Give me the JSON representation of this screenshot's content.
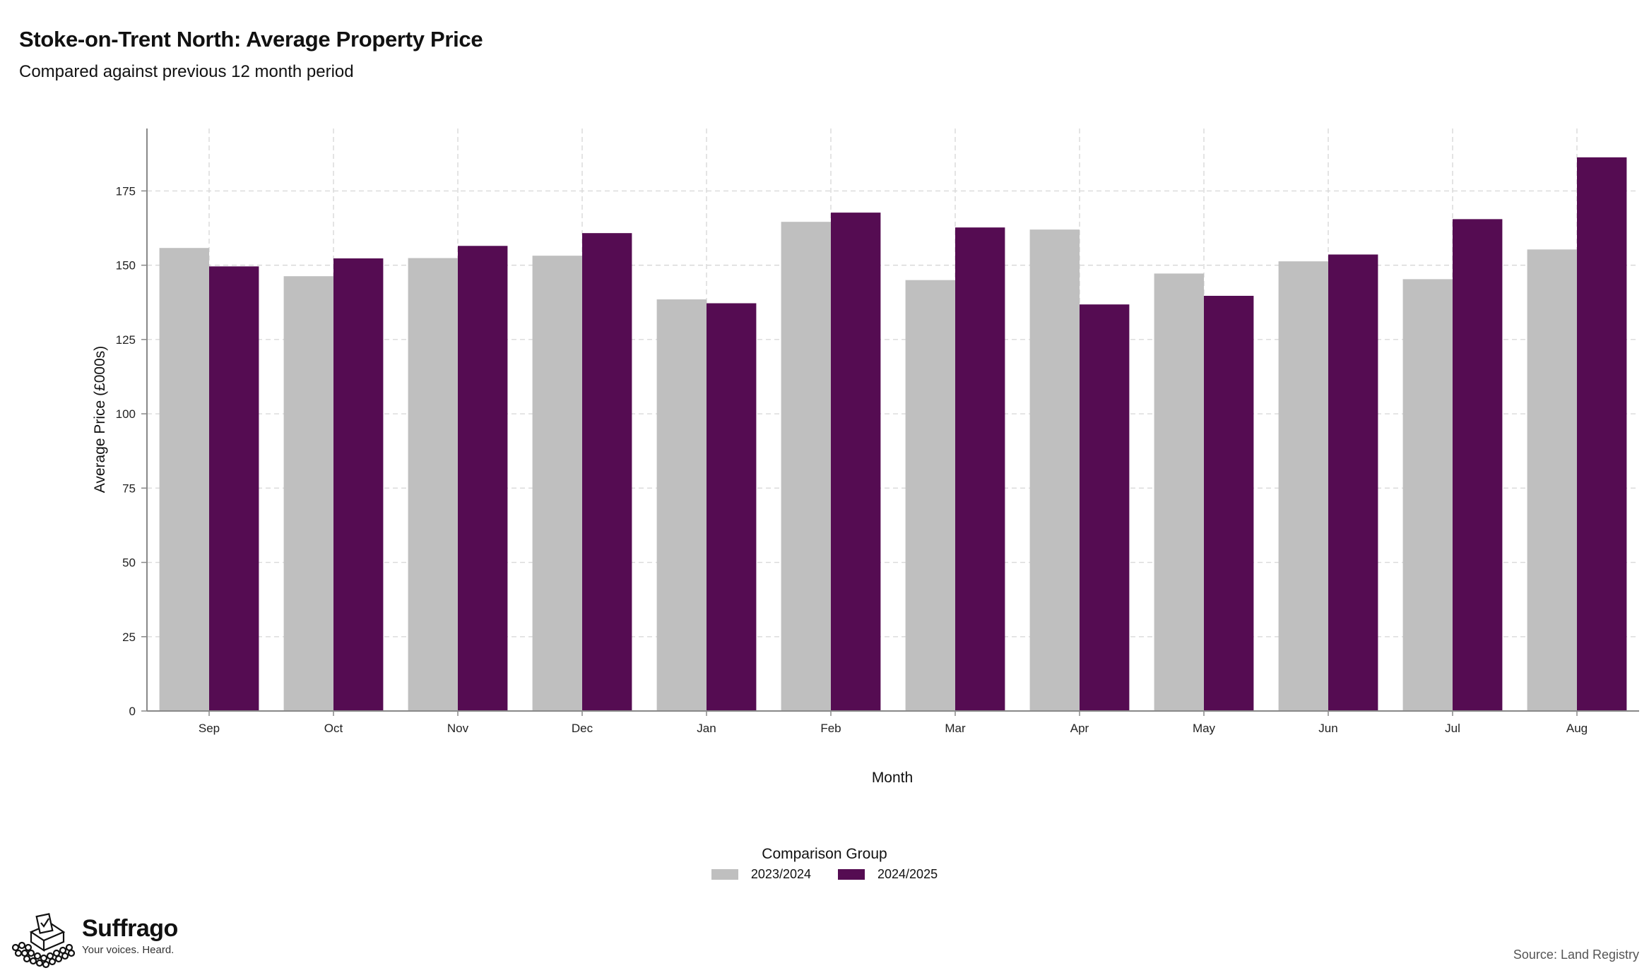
{
  "header": {
    "title": "Stoke-on-Trent North: Average Property Price",
    "subtitle": "Compared against previous 12 month period"
  },
  "legend": {
    "title": "Comparison Group",
    "items": [
      {
        "label": "2023/2024",
        "color": "#bfbfbf"
      },
      {
        "label": "2024/2025",
        "color": "#550c52"
      }
    ]
  },
  "footer": {
    "brand": "Suffrago",
    "tagline": "Your voices. Heard.",
    "source": "Source: Land Registry",
    "logo_icon": "ballot-box-crowd-icon"
  },
  "chart_data": {
    "type": "bar",
    "title": "Stoke-on-Trent North: Average Property Price",
    "subtitle": "Compared against previous 12 month period",
    "xlabel": "Month",
    "ylabel": "Average Price (£000s)",
    "categories": [
      "Sep",
      "Oct",
      "Nov",
      "Dec",
      "Jan",
      "Feb",
      "Mar",
      "Apr",
      "May",
      "Jun",
      "Jul",
      "Aug"
    ],
    "series": [
      {
        "name": "2023/2024",
        "color": "#bfbfbf",
        "values": [
          155.8,
          146.3,
          152.4,
          153.2,
          138.5,
          164.6,
          145.0,
          162.0,
          147.2,
          151.3,
          145.3,
          155.3
        ]
      },
      {
        "name": "2024/2025",
        "color": "#550c52",
        "values": [
          149.6,
          152.3,
          156.5,
          160.8,
          137.2,
          167.7,
          162.7,
          136.8,
          139.7,
          153.6,
          165.5,
          186.3
        ]
      }
    ],
    "yticks": [
      0,
      25,
      50,
      75,
      100,
      125,
      150,
      175
    ],
    "ylim": [
      0,
      196
    ],
    "grid": true,
    "legend_position": "bottom"
  }
}
